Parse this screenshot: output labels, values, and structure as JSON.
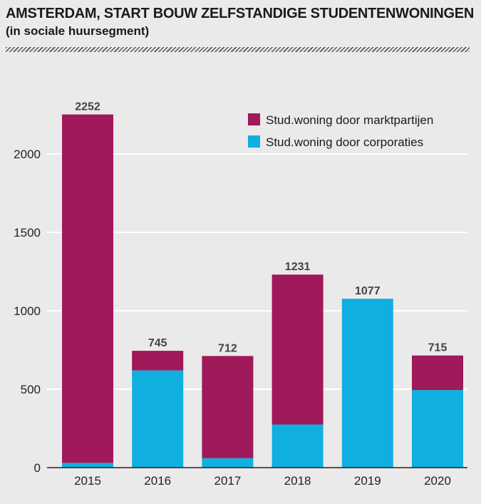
{
  "header": {
    "title": "AMSTERDAM, START BOUW ZELFSTANDIGE STUDENTENWONINGEN",
    "subtitle": "(in sociale huursegment)"
  },
  "colors": {
    "marktpartijen": "#a0195a",
    "corporaties": "#10afdf",
    "grid": "#ffffff",
    "axis": "#222222"
  },
  "chart_data": {
    "type": "bar",
    "stacked": true,
    "categories": [
      "2015",
      "2016",
      "2017",
      "2018",
      "2019",
      "2020"
    ],
    "series": [
      {
        "name": "Stud.woning door corporaties",
        "values": [
          30,
          620,
          60,
          275,
          1077,
          495
        ]
      },
      {
        "name": "Stud.woning door marktpartijen",
        "values": [
          2222,
          125,
          652,
          956,
          0,
          220
        ]
      }
    ],
    "totals": [
      2252,
      745,
      712,
      1231,
      1077,
      715
    ],
    "yticks": [
      0,
      500,
      1000,
      1500,
      2000
    ],
    "ylim": [
      0,
      2450
    ],
    "grid": true,
    "legend": {
      "position": "top-right",
      "order": [
        "Stud.woning door marktpartijen",
        "Stud.woning door corporaties"
      ]
    },
    "title": "AMSTERDAM, START BOUW ZELFSTANDIGE STUDENTENWONINGEN",
    "subtitle": "(in sociale huursegment)",
    "xlabel": "",
    "ylabel": ""
  }
}
